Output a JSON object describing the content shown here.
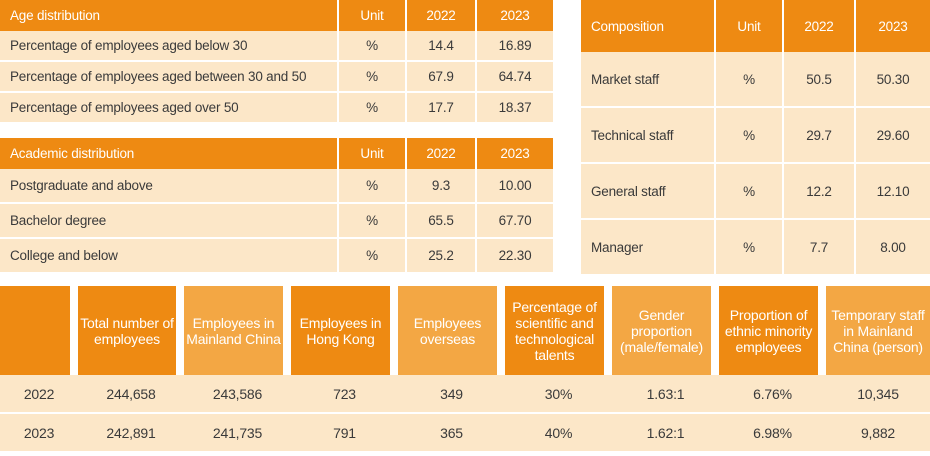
{
  "age_table": {
    "headers": [
      "Age distribution",
      "Unit",
      "2022",
      "2023"
    ],
    "rows": [
      [
        "Percentage of employees aged below 30",
        "%",
        "14.4",
        "16.89"
      ],
      [
        "Percentage of employees aged between 30 and 50",
        "%",
        "67.9",
        "64.74"
      ],
      [
        "Percentage of employees aged over 50",
        "%",
        "17.7",
        "18.37"
      ]
    ]
  },
  "academic_table": {
    "headers": [
      "Academic distribution",
      "Unit",
      "2022",
      "2023"
    ],
    "rows": [
      [
        "Postgraduate and above",
        "%",
        "9.3",
        "10.00"
      ],
      [
        "Bachelor degree",
        "%",
        "65.5",
        "67.70"
      ],
      [
        "College and below",
        "%",
        "25.2",
        "22.30"
      ]
    ]
  },
  "composition_table": {
    "headers": [
      "Composition",
      "Unit",
      "2022",
      "2023"
    ],
    "rows": [
      [
        "Market staff",
        "%",
        "50.5",
        "50.30"
      ],
      [
        "Technical staff",
        "%",
        "29.7",
        "29.60"
      ],
      [
        "General staff",
        "%",
        "12.2",
        "12.10"
      ],
      [
        "Manager",
        "%",
        "7.7",
        "8.00"
      ]
    ]
  },
  "summary_table": {
    "headers": [
      "",
      "Total number of employees",
      "Employees in Mainland China",
      "Employees in Hong Kong",
      "Employees overseas",
      "Percentage of scientific and technological talents",
      "Gender proportion (male/female)",
      "Proportion of ethnic minority employees",
      "Temporary staff in Mainland China (person)"
    ],
    "rows": [
      [
        "2022",
        "244,658",
        "243,586",
        "723",
        "349",
        "30%",
        "1.63:1",
        "6.76%",
        "10,345"
      ],
      [
        "2023",
        "242,891",
        "241,735",
        "791",
        "365",
        "40%",
        "1.62:1",
        "6.98%",
        "9,882"
      ]
    ],
    "colors": {
      "header": "#ee8a12",
      "header_light": "#f3a744",
      "row": "#fce7c8"
    }
  }
}
